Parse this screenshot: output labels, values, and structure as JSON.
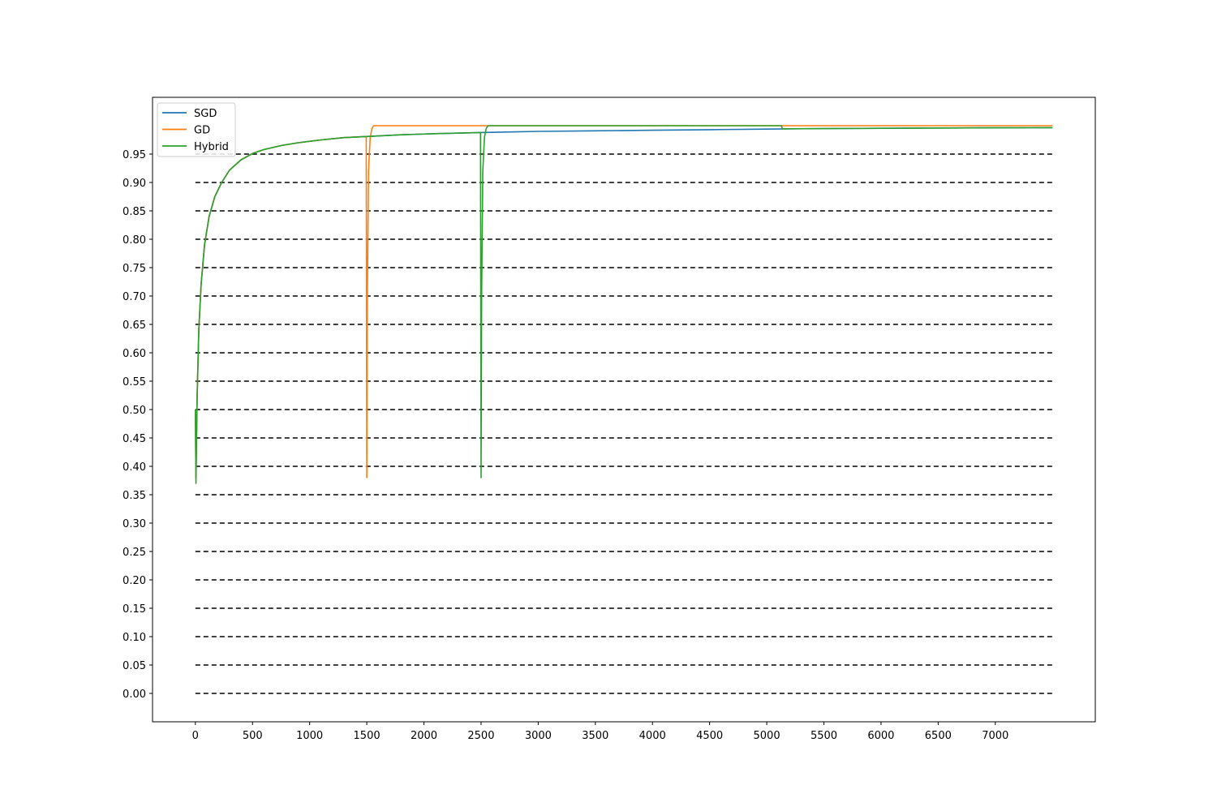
{
  "chart_data": {
    "type": "line",
    "title": "",
    "xlabel": "",
    "ylabel": "",
    "xlim": [
      -375,
      7875
    ],
    "ylim": [
      -0.05,
      1.05
    ],
    "x_ticks": [
      0,
      500,
      1000,
      1500,
      2000,
      2500,
      3000,
      3500,
      4000,
      4500,
      5000,
      5500,
      6000,
      6500,
      7000
    ],
    "x_tick_labels": [
      "0",
      "500",
      "1000",
      "1500",
      "2000",
      "2500",
      "3000",
      "3500",
      "4000",
      "4500",
      "5000",
      "5500",
      "6000",
      "6500",
      "7000"
    ],
    "y_ticks": [
      0.0,
      0.05,
      0.1,
      0.15,
      0.2,
      0.25,
      0.3,
      0.35,
      0.4,
      0.45,
      0.5,
      0.55,
      0.6,
      0.65,
      0.7,
      0.75,
      0.8,
      0.85,
      0.9,
      0.95
    ],
    "y_tick_labels": [
      "0.00",
      "0.05",
      "0.10",
      "0.15",
      "0.20",
      "0.25",
      "0.30",
      "0.35",
      "0.40",
      "0.45",
      "0.50",
      "0.55",
      "0.60",
      "0.65",
      "0.70",
      "0.75",
      "0.80",
      "0.85",
      "0.90",
      "0.95"
    ],
    "grid": false,
    "reference_lines": {
      "style": "dashed",
      "color": "#000000",
      "x_range": [
        0,
        7500
      ],
      "y_values": [
        0.0,
        0.05,
        0.1,
        0.15,
        0.2,
        0.25,
        0.3,
        0.35,
        0.4,
        0.45,
        0.5,
        0.55,
        0.6,
        0.65,
        0.7,
        0.75,
        0.8,
        0.85,
        0.9,
        0.95
      ]
    },
    "legend": {
      "placement": "top-left"
    },
    "series": [
      {
        "name": "SGD",
        "color": "#1f77b4",
        "x": [
          0,
          5,
          15,
          30,
          50,
          80,
          120,
          170,
          230,
          300,
          400,
          500,
          600,
          750,
          900,
          1100,
          1300,
          1500,
          1800,
          2100,
          2500,
          3000,
          3500,
          4000,
          4500,
          5000,
          5500,
          6000,
          6500,
          7000,
          7500
        ],
        "y": [
          0.5,
          0.38,
          0.52,
          0.64,
          0.72,
          0.79,
          0.84,
          0.875,
          0.9,
          0.922,
          0.94,
          0.951,
          0.958,
          0.965,
          0.97,
          0.975,
          0.979,
          0.981,
          0.984,
          0.986,
          0.988,
          0.99,
          0.991,
          0.992,
          0.993,
          0.994,
          0.995,
          0.9955,
          0.996,
          0.9963,
          0.9965
        ]
      },
      {
        "name": "GD",
        "color": "#ff7f0e",
        "x": [
          0,
          5,
          15,
          30,
          50,
          80,
          120,
          170,
          230,
          300,
          400,
          500,
          600,
          750,
          900,
          1100,
          1300,
          1495,
          1500,
          1505,
          1515,
          1530,
          1545,
          1560,
          1600,
          2000,
          3000,
          4000,
          5000,
          6000,
          7000,
          7500
        ],
        "y": [
          0.5,
          0.38,
          0.52,
          0.64,
          0.72,
          0.79,
          0.84,
          0.875,
          0.9,
          0.922,
          0.94,
          0.951,
          0.958,
          0.965,
          0.97,
          0.975,
          0.979,
          0.981,
          0.38,
          0.7,
          0.92,
          0.98,
          0.995,
          1.0,
          1.0,
          1.0,
          1.0,
          1.0,
          1.0,
          1.0,
          1.0,
          1.0
        ]
      },
      {
        "name": "Hybrid",
        "color": "#2ca02c",
        "x": [
          0,
          5,
          15,
          30,
          50,
          80,
          120,
          170,
          230,
          300,
          400,
          500,
          600,
          750,
          900,
          1100,
          1300,
          1500,
          1800,
          2100,
          2495,
          2500,
          2505,
          2515,
          2530,
          2545,
          2560,
          3000,
          4000,
          5130,
          5135,
          6000,
          7000,
          7500
        ],
        "y": [
          0.5,
          0.37,
          0.52,
          0.64,
          0.72,
          0.79,
          0.84,
          0.875,
          0.9,
          0.922,
          0.94,
          0.951,
          0.958,
          0.965,
          0.97,
          0.975,
          0.979,
          0.981,
          0.984,
          0.986,
          0.988,
          0.38,
          0.7,
          0.92,
          0.98,
          0.995,
          1.0,
          1.0,
          1.0,
          1.0,
          0.9945,
          0.9955,
          0.9963,
          0.9965
        ]
      }
    ]
  }
}
